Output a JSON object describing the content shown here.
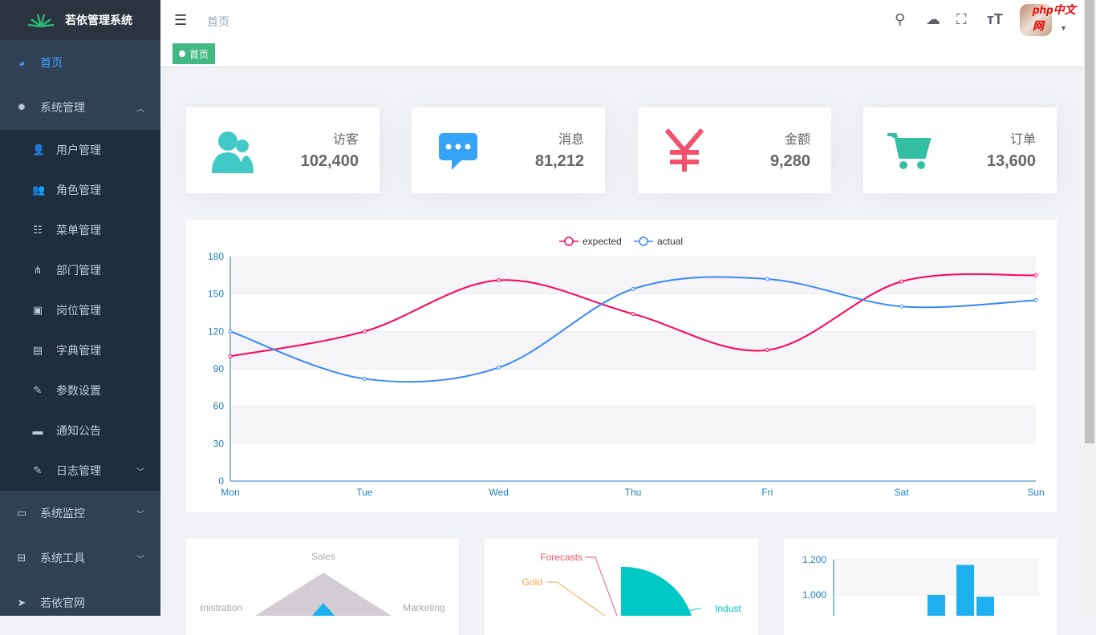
{
  "app": {
    "title": "若依管理系统"
  },
  "sidebar": {
    "items": [
      {
        "label": "首页",
        "icon": "dashboard-icon",
        "active": true
      },
      {
        "label": "系统管理",
        "icon": "gear-icon",
        "expanded": true,
        "children": [
          {
            "label": "用户管理",
            "icon": "user-icon"
          },
          {
            "label": "角色管理",
            "icon": "peoples-icon"
          },
          {
            "label": "菜单管理",
            "icon": "tree-table-icon"
          },
          {
            "label": "部门管理",
            "icon": "tree-icon"
          },
          {
            "label": "岗位管理",
            "icon": "post-icon"
          },
          {
            "label": "字典管理",
            "icon": "dict-icon"
          },
          {
            "label": "参数设置",
            "icon": "edit-icon"
          },
          {
            "label": "通知公告",
            "icon": "message-icon"
          },
          {
            "label": "日志管理",
            "icon": "log-icon",
            "expandable": true
          }
        ]
      },
      {
        "label": "系统监控",
        "icon": "monitor-icon",
        "expandable": true
      },
      {
        "label": "系统工具",
        "icon": "tool-icon",
        "expandable": true
      },
      {
        "label": "若依官网",
        "icon": "guide-icon"
      }
    ]
  },
  "header": {
    "breadcrumb": "首页",
    "watermark": "php中文网"
  },
  "tags": [
    {
      "label": "首页",
      "active": true
    }
  ],
  "cards": [
    {
      "label": "访客",
      "value": "102,400",
      "icon": "peoples-icon",
      "color": "#40c9c6"
    },
    {
      "label": "消息",
      "value": "81,212",
      "icon": "message-icon",
      "color": "#36a3f7"
    },
    {
      "label": "金额",
      "value": "9,280",
      "icon": "money-icon",
      "color": "#f4516c"
    },
    {
      "label": "订单",
      "value": "13,600",
      "icon": "shopping-cart-icon",
      "color": "#34bfa3"
    }
  ],
  "chart_data": [
    {
      "type": "line",
      "categories": [
        "Mon",
        "Tue",
        "Wed",
        "Thu",
        "Fri",
        "Sat",
        "Sun"
      ],
      "ylim": [
        0,
        180
      ],
      "yticks": [
        0,
        30,
        60,
        90,
        120,
        150,
        180
      ],
      "legend": "top",
      "series": [
        {
          "name": "expected",
          "color": "#FF005A",
          "values": [
            100,
            120,
            161,
            134,
            105,
            160,
            165
          ]
        },
        {
          "name": "actual",
          "color": "#3888fa",
          "values": [
            120,
            82,
            91,
            154,
            162,
            140,
            145
          ]
        }
      ]
    },
    {
      "type": "radar",
      "indicators": [
        "Sales",
        "Administration",
        "Marketing"
      ]
    },
    {
      "type": "pie",
      "labels": [
        "Forecasts",
        "Gold",
        "Indust"
      ]
    },
    {
      "type": "bar",
      "yticks": [
        "1,200",
        "1,000"
      ],
      "values": [
        1000,
        1170,
        990
      ]
    }
  ]
}
